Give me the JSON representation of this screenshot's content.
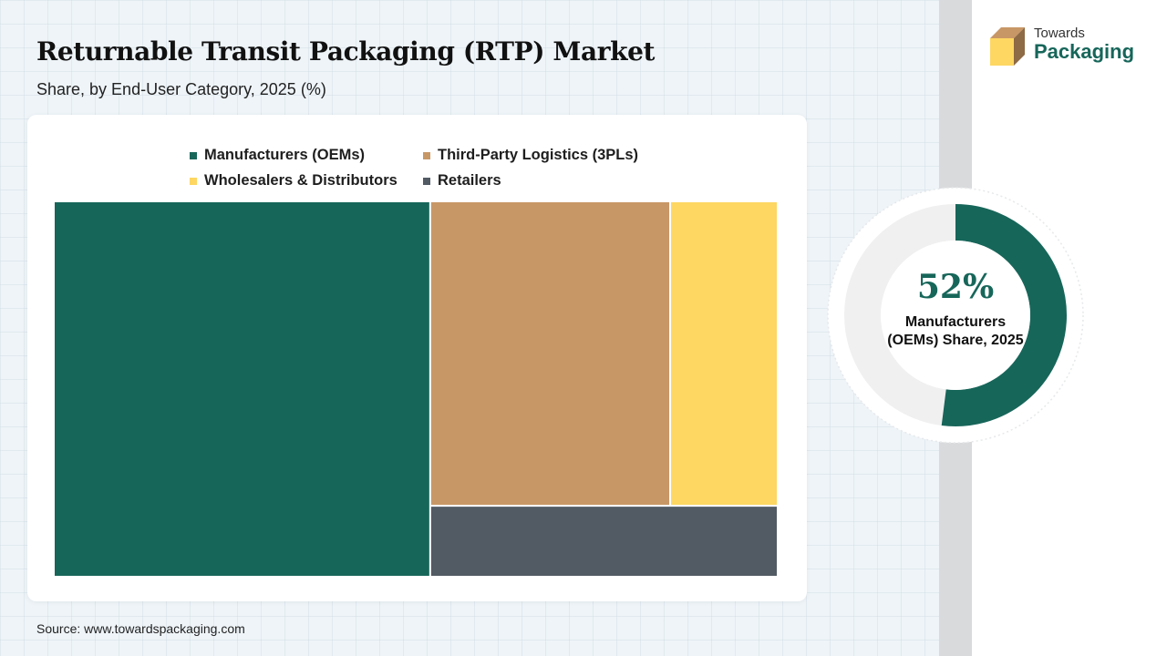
{
  "header": {
    "title": "Returnable Transit Packaging (RTP) Market",
    "subtitle": "Share, by End-User Category, 2025 (%)"
  },
  "chart_data": {
    "type": "treemap",
    "categories": [
      "Manufacturers (OEMs)",
      "Third-Party Logistics (3PLs)",
      "Wholesalers & Distributors",
      "Retailers"
    ],
    "values": [
      52,
      27,
      12,
      9
    ],
    "colors": [
      "#17665a",
      "#c89766",
      "#fdd762",
      "#525a63"
    ],
    "unit": "%"
  },
  "highlight": {
    "value_text": "52%",
    "value": 52,
    "label": "Manufacturers (OEMs) Share, 2025",
    "color": "#17665a",
    "track_color": "#f0f0f0"
  },
  "logo": {
    "line1": "Towards",
    "line2": "Packaging",
    "icon": "box-icon"
  },
  "source": "Source: www.towardspackaging.com"
}
